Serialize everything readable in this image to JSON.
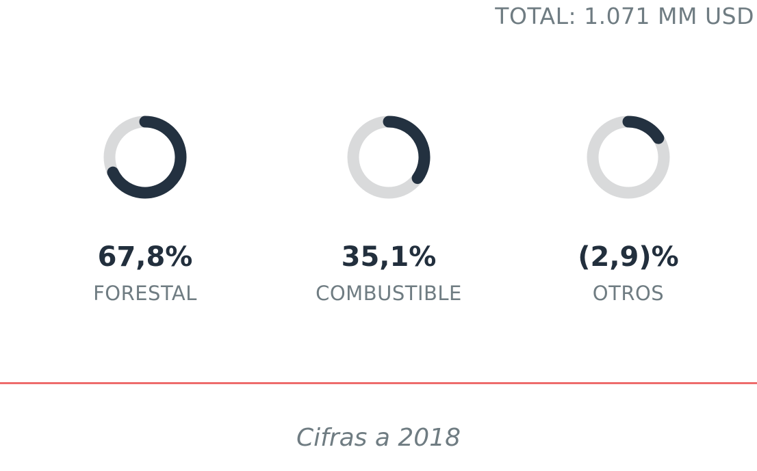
{
  "header": {
    "total_label": "TOTAL: 1.071 MM USD"
  },
  "colors": {
    "track": "#d9dadb",
    "fill": "#233140",
    "divider": "#ee6b6b",
    "text_muted": "#6f7c82"
  },
  "chart_data": {
    "type": "donut",
    "items": [
      {
        "label": "FORESTAL",
        "value_text": "67,8%",
        "value": 67.8,
        "ring_fraction": 0.68
      },
      {
        "label": "COMBUSTIBLE",
        "value_text": "35,1%",
        "value": 35.1,
        "ring_fraction": 0.35
      },
      {
        "label": "OTROS",
        "value_text": "(2,9)%",
        "value": -2.9,
        "ring_fraction": 0.16
      }
    ]
  },
  "footer": {
    "note": "Cifras a 2018"
  }
}
